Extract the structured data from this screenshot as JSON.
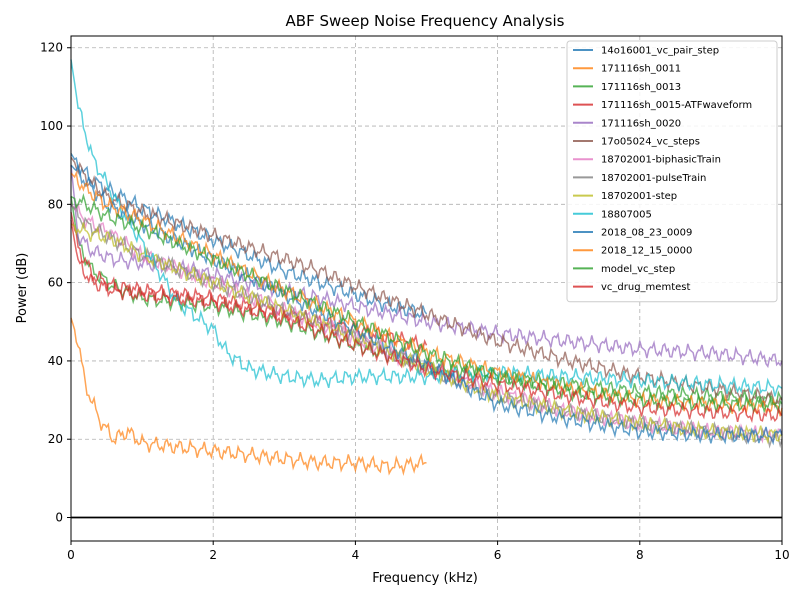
{
  "chart_data": {
    "type": "line",
    "title": "ABF Sweep Noise Frequency Analysis",
    "xlabel": "Frequency (kHz)",
    "ylabel": "Power (dB)",
    "xlim": [
      0,
      10
    ],
    "ylim": [
      -6,
      123
    ],
    "xticks": [
      0,
      2,
      4,
      6,
      8,
      10
    ],
    "yticks": [
      0,
      20,
      40,
      60,
      80,
      100,
      120
    ],
    "grid": true,
    "legend_position": "top-right",
    "zero_line": 0,
    "series": [
      {
        "name": "14o16001_vc_pair_step",
        "color": "#1f77b4",
        "x": [
          0,
          0.1,
          0.3,
          0.6,
          1,
          1.5,
          2,
          2.5,
          3,
          3.5,
          4,
          4.5,
          5
        ],
        "y": [
          93,
          90,
          86,
          83,
          79,
          75,
          71,
          67,
          63,
          60,
          57,
          54,
          52
        ]
      },
      {
        "name": "171116sh_0011",
        "color": "#ff7f0e",
        "x": [
          0,
          0.1,
          0.2,
          0.4,
          0.6,
          0.8,
          1,
          1.5,
          2,
          2.5,
          3,
          3.5,
          4,
          4.5,
          5
        ],
        "y": [
          51,
          45,
          34,
          25,
          20,
          22,
          19,
          18,
          17,
          16,
          15,
          14,
          14,
          13,
          14
        ]
      },
      {
        "name": "171116sh_0013",
        "color": "#2ca02c",
        "x": [
          0,
          0.1,
          0.3,
          0.6,
          1,
          1.5,
          2,
          3,
          4,
          5,
          6,
          7,
          8,
          9,
          10
        ],
        "y": [
          82,
          70,
          63,
          59,
          56,
          55,
          54,
          50,
          44,
          39,
          36,
          34,
          32,
          31,
          30
        ]
      },
      {
        "name": "171116sh_0015-ATFwaveform",
        "color": "#d62728",
        "x": [
          0,
          0.1,
          0.3,
          0.6,
          1,
          1.5,
          2,
          3,
          4,
          5
        ],
        "y": [
          78,
          69,
          62,
          59,
          58,
          57,
          56,
          52,
          48,
          44
        ]
      },
      {
        "name": "171116sh_0020",
        "color": "#9467bd",
        "x": [
          0,
          0.1,
          0.3,
          0.6,
          1,
          1.5,
          2,
          3,
          4,
          5,
          6,
          7,
          8,
          9,
          10
        ],
        "y": [
          90,
          72,
          68,
          66,
          65,
          64,
          62,
          58,
          54,
          50,
          47,
          45,
          43,
          42,
          40
        ]
      },
      {
        "name": "17o05024_vc_steps",
        "color": "#8c564b",
        "x": [
          0,
          0.2,
          0.5,
          1,
          1.5,
          2,
          2.5,
          3,
          3.5,
          4,
          5,
          6,
          7,
          8,
          9,
          10
        ],
        "y": [
          92,
          87,
          82,
          78,
          75,
          72,
          69,
          66,
          63,
          59,
          52,
          45,
          40,
          36,
          33,
          30
        ]
      },
      {
        "name": "18702001-biphasicTrain",
        "color": "#e377c2",
        "x": [
          0,
          0.2,
          0.6,
          1,
          2,
          3,
          4,
          5,
          6,
          7,
          8,
          9,
          10
        ],
        "y": [
          80,
          76,
          72,
          67,
          60,
          53,
          46,
          38,
          32,
          27,
          24,
          22,
          21
        ]
      },
      {
        "name": "18702001-pulseTrain",
        "color": "#7f7f7f",
        "x": [
          0,
          0.2,
          0.6,
          1,
          2,
          3,
          4,
          5,
          6,
          7,
          8,
          9,
          10
        ],
        "y": [
          80,
          75,
          71,
          67,
          60,
          53,
          46,
          38,
          31,
          27,
          24,
          22,
          20
        ]
      },
      {
        "name": "18702001-step",
        "color": "#bcbd22",
        "x": [
          0,
          0.2,
          0.6,
          1,
          2,
          3,
          4,
          5,
          6,
          7,
          8,
          9,
          10
        ],
        "y": [
          75,
          73,
          71,
          67,
          60,
          53,
          46,
          38,
          31,
          27,
          24,
          22,
          21
        ]
      },
      {
        "name": "18807005",
        "color": "#17becf",
        "x": [
          0,
          0.1,
          0.3,
          0.6,
          1,
          1.5,
          2,
          2.2,
          2.5,
          3,
          3.5,
          4,
          5,
          6,
          7,
          8,
          9,
          10
        ],
        "y": [
          117,
          105,
          92,
          82,
          70,
          55,
          48,
          42,
          38,
          36,
          35,
          36,
          36,
          37,
          36,
          35,
          34,
          33
        ]
      },
      {
        "name": "2018_08_23_0009",
        "color": "#1f77b4",
        "x": [
          0,
          0.5,
          1,
          2,
          3,
          4,
          5,
          6,
          7,
          8,
          9,
          10
        ],
        "y": [
          90,
          80,
          75,
          66,
          57,
          48,
          39,
          29,
          25,
          22,
          21,
          21
        ]
      },
      {
        "name": "2018_12_15_0000",
        "color": "#ff7f0e",
        "x": [
          0,
          0.2,
          0.5,
          1,
          2,
          3,
          4,
          5,
          6,
          7,
          8,
          9,
          10
        ],
        "y": [
          88,
          84,
          80,
          76,
          67,
          58,
          50,
          42,
          37,
          33,
          30,
          29,
          28
        ]
      },
      {
        "name": "model_vc_step",
        "color": "#2ca02c",
        "x": [
          0,
          0.2,
          0.5,
          1,
          2,
          3,
          4,
          5,
          6,
          7,
          8,
          9,
          10
        ],
        "y": [
          82,
          80,
          77,
          74,
          66,
          58,
          50,
          42,
          36,
          32,
          30,
          29,
          29
        ]
      },
      {
        "name": "vc_drug_memtest",
        "color": "#d62728",
        "x": [
          0,
          0.1,
          0.3,
          0.6,
          1,
          1.5,
          2,
          3,
          4,
          5,
          6,
          7,
          8,
          9,
          10
        ],
        "y": [
          76,
          65,
          60,
          58,
          57,
          56,
          55,
          51,
          44,
          38,
          34,
          31,
          28,
          27,
          26
        ]
      }
    ]
  }
}
